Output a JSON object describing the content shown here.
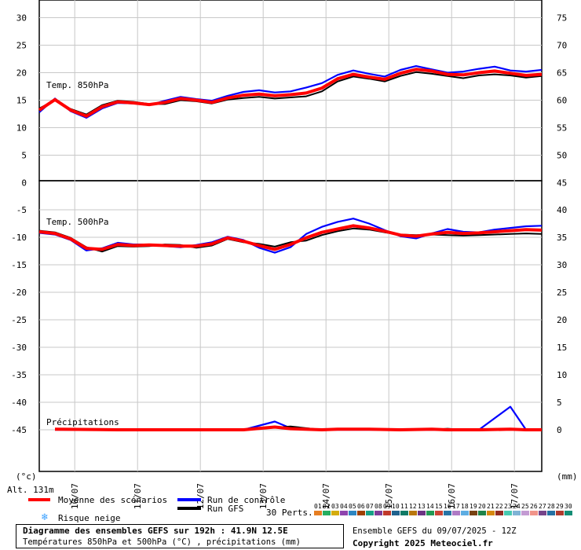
{
  "chart_data": {
    "type": "line",
    "x": [
      "10/07",
      "11/07",
      "12/07",
      "13/07",
      "14/07",
      "15/07",
      "16/07",
      "17/07"
    ],
    "panels": [
      {
        "label": "Temp. 850hPa",
        "ylim": [
          0,
          30
        ],
        "yticks_left": [
          "30",
          "25",
          "20",
          "15",
          "10",
          "5",
          "0"
        ],
        "yticks_right": [
          "75",
          "70",
          "65",
          "60",
          "55",
          "50",
          "45"
        ],
        "hours": [
          0,
          6,
          12,
          18,
          24,
          30,
          36,
          42,
          48,
          54,
          60,
          66,
          72,
          78,
          84,
          90,
          96,
          102,
          108,
          114,
          120,
          126,
          132,
          138,
          144,
          150,
          156,
          162,
          168,
          174,
          180,
          186,
          192
        ],
        "series": [
          {
            "name": "Moyenne des scénarios",
            "values": [
              13.2,
              15.1,
              13.2,
              12.1,
              13.8,
              14.7,
              14.5,
              14.2,
              14.6,
              15.3,
              15.0,
              14.6,
              15.4,
              15.9,
              16.1,
              15.8,
              16.0,
              16.3,
              17.2,
              18.9,
              19.7,
              19.2,
              18.8,
              19.9,
              20.6,
              20.3,
              19.7,
              19.6,
              20.0,
              20.3,
              19.9,
              19.5,
              19.7
            ]
          },
          {
            "name": "Run de contrôle",
            "values": [
              12.8,
              15.3,
              13.0,
              11.8,
              13.5,
              14.5,
              14.4,
              14.1,
              14.9,
              15.6,
              15.2,
              14.9,
              15.8,
              16.5,
              16.8,
              16.4,
              16.6,
              17.3,
              18.1,
              19.6,
              20.4,
              19.8,
              19.3,
              20.5,
              21.2,
              20.6,
              20.0,
              20.2,
              20.7,
              21.1,
              20.4,
              20.2,
              20.5
            ]
          },
          {
            "name": "Run GFS",
            "values": [
              13.5,
              15.0,
              13.4,
              12.4,
              14.1,
              14.9,
              14.7,
              14.3,
              14.3,
              15.0,
              14.8,
              14.4,
              15.1,
              15.4,
              15.6,
              15.3,
              15.5,
              15.7,
              16.6,
              18.4,
              19.3,
              18.9,
              18.4,
              19.4,
              20.1,
              19.8,
              19.4,
              19.0,
              19.5,
              19.7,
              19.5,
              19.1,
              19.4
            ]
          }
        ]
      },
      {
        "label": "Temp. 500hPa",
        "ylim": [
          -45,
          -5
        ],
        "yticks_left": [
          "-5",
          "-10",
          "-15",
          "-20",
          "-25",
          "-30",
          "-35",
          "-40",
          "-45"
        ],
        "yticks_right": [
          "40",
          "35",
          "30",
          "25",
          "20",
          "15",
          "10",
          "5",
          "0"
        ],
        "hours": [
          0,
          6,
          12,
          18,
          24,
          30,
          36,
          42,
          48,
          54,
          60,
          66,
          72,
          78,
          84,
          90,
          96,
          102,
          108,
          114,
          120,
          126,
          132,
          138,
          144,
          150,
          156,
          162,
          168,
          174,
          180,
          186,
          192
        ],
        "series": [
          {
            "name": "Moyenne des scénarios",
            "values": [
              -9.0,
              -9.3,
              -10.3,
              -12.0,
              -12.2,
              -11.3,
              -11.5,
              -11.4,
              -11.5,
              -11.6,
              -11.6,
              -11.2,
              -10.1,
              -10.7,
              -11.5,
              -12.2,
              -11.3,
              -10.1,
              -9.1,
              -8.5,
              -7.9,
              -8.3,
              -8.9,
              -9.6,
              -9.8,
              -9.4,
              -9.1,
              -9.3,
              -9.2,
              -9.0,
              -8.8,
              -8.6,
              -8.7
            ]
          },
          {
            "name": "Run de contrôle",
            "values": [
              -9.2,
              -9.5,
              -10.5,
              -12.4,
              -12.0,
              -11.0,
              -11.3,
              -11.3,
              -11.6,
              -11.8,
              -11.4,
              -10.9,
              -9.9,
              -10.5,
              -11.9,
              -12.8,
              -11.8,
              -9.4,
              -8.1,
              -7.2,
              -6.6,
              -7.5,
              -8.7,
              -9.8,
              -10.2,
              -9.3,
              -8.5,
              -9.0,
              -9.1,
              -8.6,
              -8.3,
              -8.0,
              -7.9
            ]
          },
          {
            "name": "Run GFS",
            "values": [
              -8.8,
              -9.1,
              -10.1,
              -11.8,
              -12.6,
              -11.6,
              -11.7,
              -11.6,
              -11.3,
              -11.4,
              -11.9,
              -11.5,
              -10.3,
              -10.9,
              -11.2,
              -11.7,
              -10.9,
              -10.6,
              -9.6,
              -8.9,
              -8.4,
              -8.6,
              -9.1,
              -9.5,
              -9.6,
              -9.5,
              -9.6,
              -9.7,
              -9.6,
              -9.5,
              -9.4,
              -9.3,
              -9.4
            ]
          }
        ]
      }
    ],
    "precip": {
      "label": "Précipitations",
      "unit_left": "(°c)",
      "unit_right": "(mm)",
      "yticks_right": [
        "5",
        "0"
      ],
      "hours": [
        6,
        30,
        54,
        78,
        90,
        96,
        108,
        114,
        120,
        126,
        138,
        150,
        156,
        162,
        168,
        180,
        186,
        192
      ],
      "series": [
        {
          "name": "Moyenne des scénarios",
          "values": [
            0.1,
            0.0,
            0.0,
            0.0,
            0.5,
            0.2,
            0.0,
            0.1,
            0.1,
            0.1,
            0.0,
            0.1,
            0.0,
            0.0,
            0.0,
            0.1,
            0.0,
            0.0
          ]
        },
        {
          "name": "Run de contrôle",
          "values": [
            0.0,
            0.0,
            0.0,
            0.0,
            1.5,
            0.3,
            0.0,
            0.0,
            0.0,
            0.0,
            0.0,
            0.0,
            0.0,
            0.0,
            0.0,
            4.2,
            0.0,
            0.0
          ]
        },
        {
          "name": "Run GFS",
          "values": [
            0.0,
            0.0,
            0.0,
            0.0,
            0.4,
            0.6,
            0.0,
            0.0,
            0.1,
            0.0,
            0.0,
            0.0,
            0.2,
            0.0,
            0.0,
            0.0,
            0.0,
            0.0
          ]
        }
      ]
    }
  },
  "legend": {
    "mean": "Moyenne des scénarios",
    "control": "Run de contrôle",
    "gfs": "Run GFS",
    "snow": "Risque neige",
    "perts": "30 Perts.",
    "pert_numbers": [
      "01",
      "02",
      "03",
      "04",
      "05",
      "06",
      "07",
      "08",
      "09",
      "10",
      "11",
      "12",
      "13",
      "14",
      "15",
      "16",
      "17",
      "18",
      "19",
      "20",
      "21",
      "22",
      "23",
      "24",
      "25",
      "26",
      "27",
      "28",
      "29",
      "30"
    ],
    "pert_colors": [
      "#e67e22",
      "#27ae60",
      "#d4ac0d",
      "#8e44ad",
      "#2e86c1",
      "#a04000",
      "#16a085",
      "#7d3c98",
      "#c0392b",
      "#1f618d",
      "#117a65",
      "#b9770e",
      "#6c3483",
      "#229954",
      "#cb4335",
      "#2874a6",
      "#af7ac5",
      "#5dade2",
      "#784212",
      "#1e8449",
      "#d68910",
      "#922b21",
      "#48c9b0",
      "#7fb3d5",
      "#c39bd3",
      "#f1948a",
      "#76448a",
      "#2471a3",
      "#b03a2e",
      "#138d75"
    ]
  },
  "altitude": "Alt. 131m",
  "footer": {
    "title": "Diagramme des ensembles GEFS sur 192h : 41.9N 12.5E",
    "subtitle": "Températures 850hPa et 500hPa (°C) , précipitations (mm)",
    "run_info": "Ensemble GEFS du 09/07/2025 - 12Z",
    "copyright": "Copyright 2025 Meteociel.fr"
  },
  "colors": {
    "mean": "#ff0000",
    "control": "#0000ff",
    "gfs": "#000000",
    "grid": "#c8c8c8",
    "frame": "#000000",
    "snow": "#3aa0ff"
  }
}
